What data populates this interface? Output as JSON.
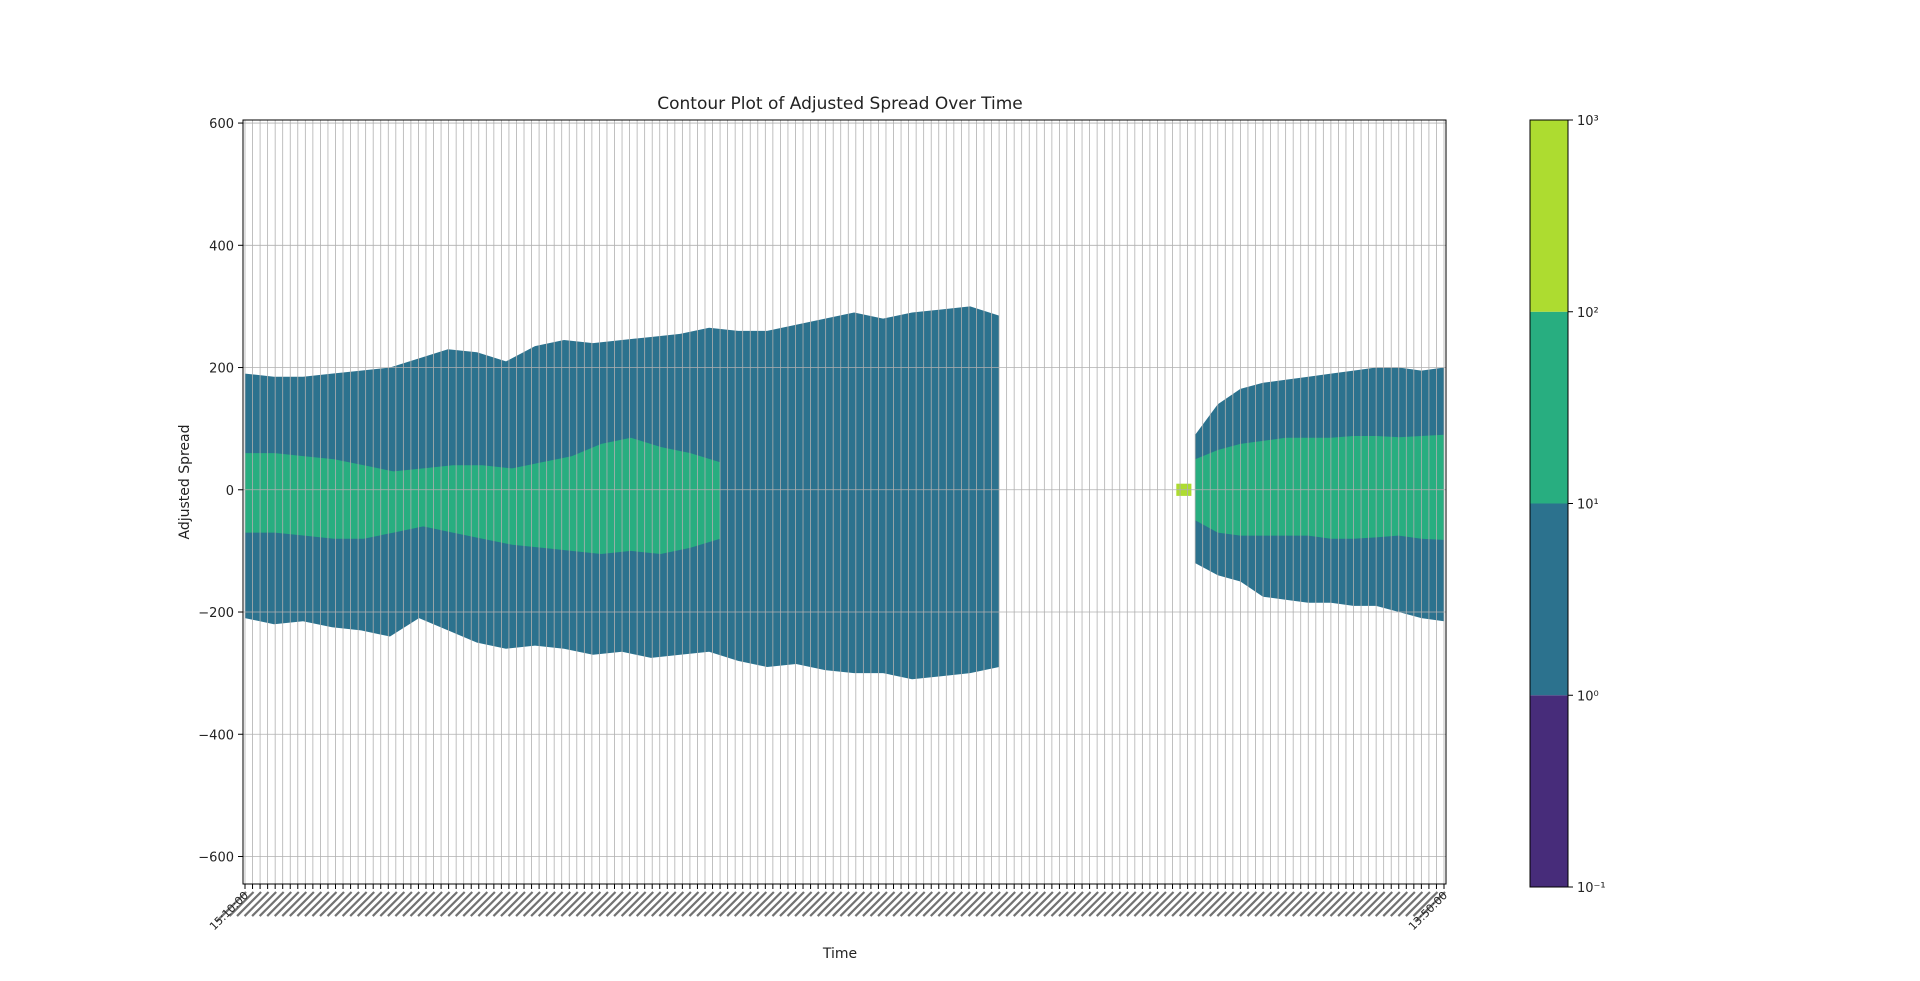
{
  "chart_data": {
    "type": "heatmap",
    "title": "Contour Plot of Adjusted Spread Over Time",
    "xlabel": "Time",
    "ylabel": "Adjusted Spread",
    "y_ticks": [
      600,
      400,
      200,
      0,
      -200,
      -400,
      -600
    ],
    "y_tick_labels": [
      "600",
      "400",
      "200",
      "0",
      "−200",
      "−400",
      "−600"
    ],
    "ylim": [
      -645,
      605
    ],
    "grid": true,
    "x_label_note": "~160 rotated time tick labels (unreadable in image), spanning 15:10:00 to 13:50:00",
    "x_tick_first": "15:10:00",
    "x_tick_last": "13:50:00",
    "x_tick_count": 160,
    "colorbar": {
      "scale": "log",
      "tick_labels": [
        "10⁻¹",
        "10⁰",
        "10¹",
        "10²",
        "10³"
      ],
      "levels": [
        -1,
        0,
        1,
        2,
        3
      ],
      "colors": [
        "#472c7a",
        "#2c728e",
        "#28ae80",
        "#addc30"
      ]
    },
    "regions": [
      {
        "x_start": 0,
        "x_end": 100,
        "level": "10^0-10^1",
        "y_top_profile": [
          190,
          185,
          185,
          190,
          195,
          200,
          215,
          230,
          225,
          210,
          235,
          245,
          240,
          245,
          250,
          255,
          265,
          260,
          260,
          270,
          280,
          290,
          280,
          290,
          295,
          300,
          285
        ],
        "y_bottom_profile": [
          -210,
          -220,
          -215,
          -225,
          -230,
          -240,
          -210,
          -230,
          -250,
          -260,
          -255,
          -260,
          -270,
          -265,
          -275,
          -270,
          -265,
          -280,
          -290,
          -285,
          -295,
          -300,
          -300,
          -310,
          -305,
          -300,
          -290
        ]
      },
      {
        "x_start": 0,
        "x_end": 63,
        "level": "10^1-10^2",
        "y_top_profile": [
          60,
          60,
          55,
          50,
          40,
          30,
          35,
          40,
          40,
          35,
          45,
          55,
          75,
          85,
          70,
          60,
          45
        ],
        "y_bottom_profile": [
          -70,
          -70,
          -75,
          -80,
          -80,
          -70,
          -60,
          -70,
          -80,
          -90,
          -95,
          -100,
          -105,
          -100,
          -105,
          -95,
          -80
        ]
      },
      {
        "x_start": 126,
        "x_end": 159,
        "level": "10^0-10^1",
        "y_top_profile": [
          90,
          140,
          165,
          175,
          180,
          185,
          190,
          195,
          200,
          200,
          195,
          200
        ],
        "y_bottom_profile": [
          -120,
          -140,
          -150,
          -175,
          -180,
          -185,
          -185,
          -190,
          -190,
          -200,
          -210,
          -215
        ]
      },
      {
        "x_start": 126,
        "x_end": 159,
        "level": "10^1-10^2",
        "y_top_profile": [
          50,
          65,
          75,
          80,
          85,
          85,
          85,
          88,
          88,
          86,
          88,
          90
        ],
        "y_bottom_profile": [
          -50,
          -70,
          -75,
          -75,
          -75,
          -75,
          -80,
          -80,
          -78,
          -75,
          -80,
          -82
        ]
      },
      {
        "x_start": 123.5,
        "x_end": 125.5,
        "level": "10^2-10^3",
        "y_top_profile": [
          10,
          10
        ],
        "y_bottom_profile": [
          -10,
          -10
        ]
      }
    ]
  }
}
